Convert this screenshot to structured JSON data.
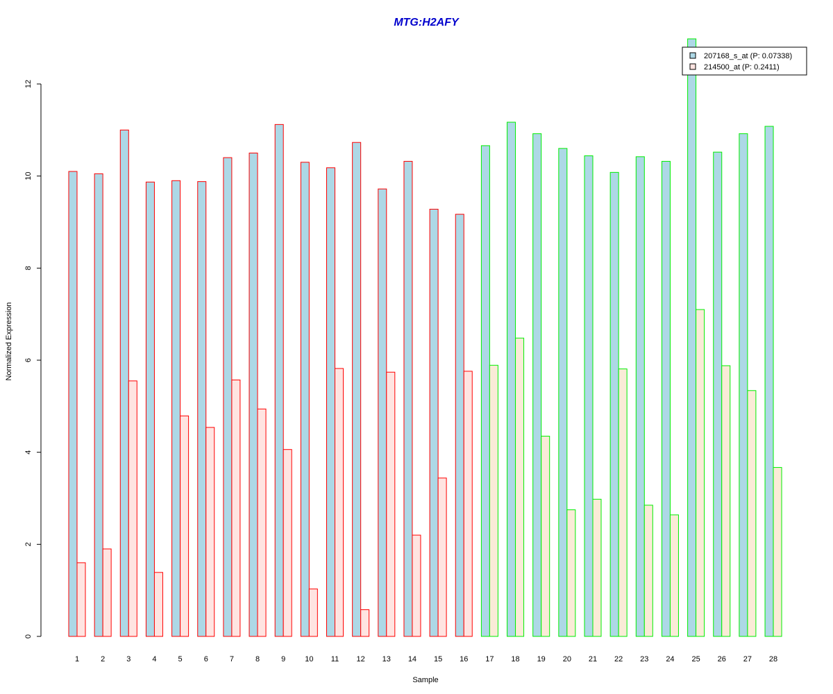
{
  "chart_data": {
    "type": "bar",
    "title": "MTG:H2AFY",
    "xlabel": "Sample",
    "ylabel": "Normalized Expression",
    "ylim": [
      0,
      12.1
    ],
    "y_ticks": [
      0,
      2,
      4,
      6,
      8,
      10,
      12
    ],
    "grid": false,
    "legend_position": "top-right",
    "categories": [
      "1",
      "2",
      "3",
      "4",
      "5",
      "6",
      "7",
      "8",
      "9",
      "10",
      "11",
      "12",
      "13",
      "14",
      "15",
      "16",
      "17",
      "18",
      "19",
      "20",
      "21",
      "22",
      "23",
      "24",
      "25",
      "26",
      "27",
      "28"
    ],
    "series": [
      {
        "name": "207168_s_at (P: 0.07338)",
        "values": [
          10.1,
          10.05,
          11.0,
          9.87,
          9.9,
          9.88,
          10.4,
          10.5,
          11.12,
          10.3,
          10.18,
          10.73,
          9.72,
          10.32,
          9.28,
          9.17,
          10.66,
          11.17,
          10.92,
          10.6,
          10.44,
          10.08,
          10.42,
          10.32,
          12.98,
          10.52,
          10.92,
          11.08
        ]
      },
      {
        "name": "214500_at (P: 0.2411)",
        "values": [
          1.6,
          1.9,
          5.55,
          1.39,
          4.79,
          4.54,
          5.57,
          4.94,
          4.06,
          1.03,
          5.82,
          0.58,
          5.74,
          2.2,
          3.44,
          5.76,
          5.89,
          6.48,
          4.35,
          2.75,
          2.98,
          5.81,
          2.85,
          2.64,
          7.1,
          5.88,
          5.34,
          3.67
        ]
      }
    ],
    "group_sizes": [
      16,
      12
    ],
    "colors": {
      "series_fill": [
        "#add8e6",
        "#ffe4e1"
      ],
      "series_fill_group2": [
        "#add8e6",
        "#faebd7"
      ],
      "group_border": [
        "#ff0000",
        "#00ee00"
      ],
      "title": "#0000cd"
    }
  }
}
